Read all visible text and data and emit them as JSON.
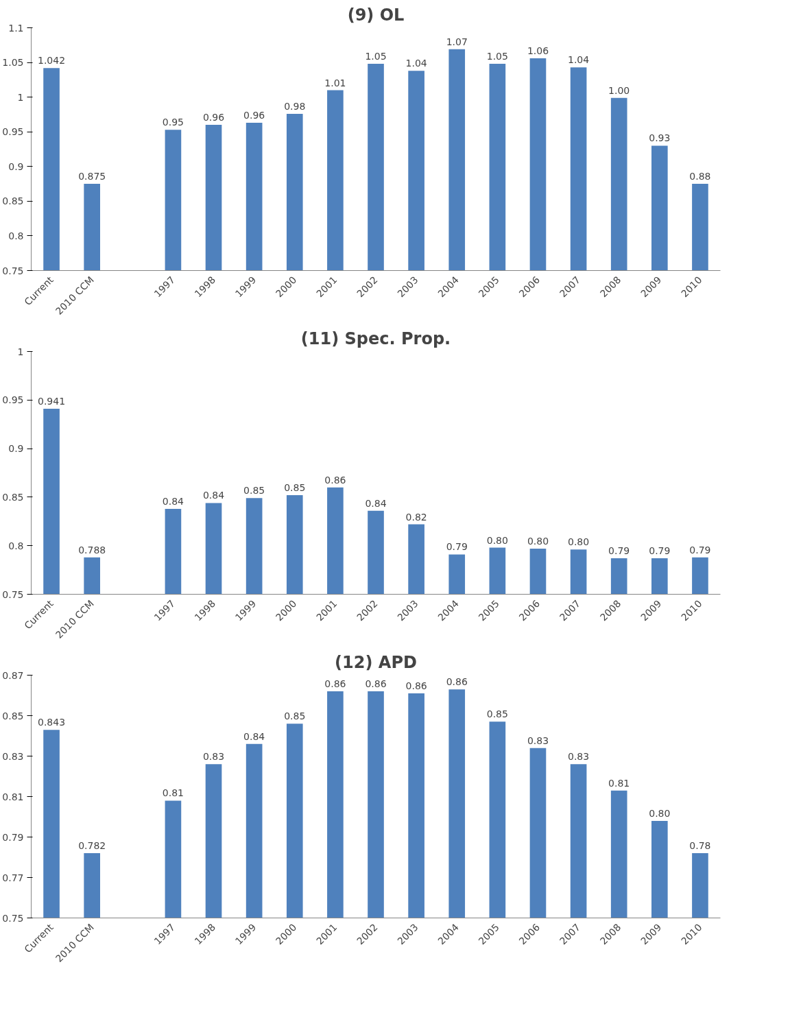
{
  "chart_data": [
    {
      "type": "bar",
      "title": "(9) OL",
      "categories": [
        "Current",
        "2010 CCM",
        null,
        "1997",
        "1998",
        "1999",
        "2000",
        "2001",
        "2002",
        "2003",
        "2004",
        "2005",
        "2006",
        "2007",
        "2008",
        "2009",
        "2010"
      ],
      "values": [
        1.042,
        0.875,
        null,
        0.953,
        0.96,
        0.963,
        0.976,
        1.01,
        1.048,
        1.038,
        1.069,
        1.048,
        1.056,
        1.043,
        0.999,
        0.93,
        0.875
      ],
      "value_labels": [
        "1.042",
        "0.875",
        null,
        "0.95",
        "0.96",
        "0.96",
        "0.98",
        "1.01",
        "1.05",
        "1.04",
        "1.07",
        "1.05",
        "1.06",
        "1.04",
        "1.00",
        "0.93",
        "0.88"
      ],
      "color": "#4f81bd",
      "ylim": [
        0.75,
        1.1
      ],
      "yticks": [
        0.75,
        0.8,
        0.85,
        0.9,
        0.95,
        1,
        1.05,
        1.1
      ],
      "grid": false
    },
    {
      "type": "bar",
      "title": "(11) Spec. Prop.",
      "categories": [
        "Current",
        "2010 CCM",
        null,
        "1997",
        "1998",
        "1999",
        "2000",
        "2001",
        "2002",
        "2003",
        "2004",
        "2005",
        "2006",
        "2007",
        "2008",
        "2009",
        "2010"
      ],
      "values": [
        0.941,
        0.788,
        null,
        0.838,
        0.844,
        0.849,
        0.852,
        0.86,
        0.836,
        0.822,
        0.791,
        0.798,
        0.797,
        0.796,
        0.787,
        0.787,
        0.788
      ],
      "value_labels": [
        "0.941",
        "0.788",
        null,
        "0.84",
        "0.84",
        "0.85",
        "0.85",
        "0.86",
        "0.84",
        "0.82",
        "0.79",
        "0.80",
        "0.80",
        "0.80",
        "0.79",
        "0.79",
        "0.79"
      ],
      "color": "#4f81bd",
      "ylim": [
        0.75,
        1
      ],
      "yticks": [
        0.75,
        0.8,
        0.85,
        0.9,
        0.95,
        1
      ],
      "grid": false
    },
    {
      "type": "bar",
      "title": "(12) APD",
      "categories": [
        "Current",
        "2010 CCM",
        null,
        "1997",
        "1998",
        "1999",
        "2000",
        "2001",
        "2002",
        "2003",
        "2004",
        "2005",
        "2006",
        "2007",
        "2008",
        "2009",
        "2010"
      ],
      "values": [
        0.843,
        0.782,
        null,
        0.808,
        0.826,
        0.836,
        0.846,
        0.862,
        0.862,
        0.861,
        0.863,
        0.847,
        0.834,
        0.826,
        0.813,
        0.798,
        0.782
      ],
      "value_labels": [
        "0.843",
        "0.782",
        null,
        "0.81",
        "0.83",
        "0.84",
        "0.85",
        "0.86",
        "0.86",
        "0.86",
        "0.86",
        "0.85",
        "0.83",
        "0.83",
        "0.81",
        "0.80",
        "0.78"
      ],
      "color": "#4f81bd",
      "ylim": [
        0.75,
        0.87
      ],
      "yticks": [
        0.75,
        0.77,
        0.79,
        0.81,
        0.83,
        0.85,
        0.87
      ],
      "grid": false
    }
  ]
}
